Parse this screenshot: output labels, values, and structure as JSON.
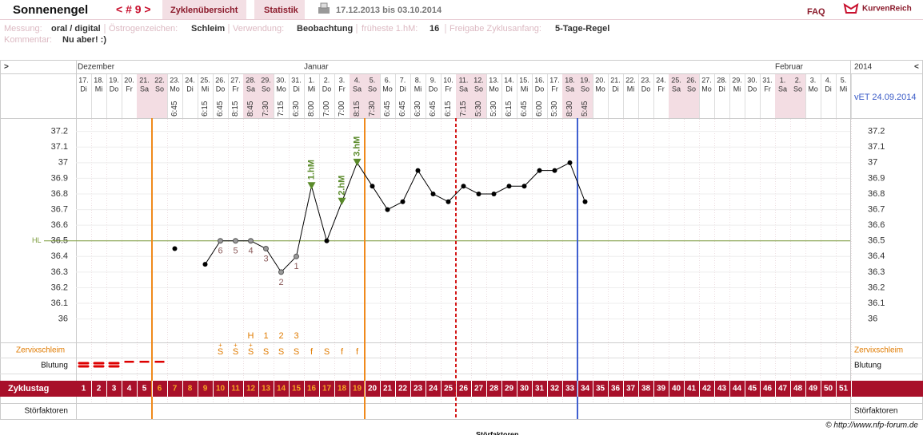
{
  "header": {
    "name": "Sonnenengel",
    "cycle_nav": "< # 9 >",
    "tab_overview": "Zyklenübersicht",
    "tab_stats": "Statistik",
    "range": "17.12.2013 bis 03.10.2014",
    "faq": "FAQ",
    "brand": "KurvenReich"
  },
  "info": {
    "measure_label": "Messung:",
    "measure": "oral / digital",
    "estrogen_label": "Östrogenzeichen:",
    "estrogen": "Schleim",
    "use_label": "Verwendung:",
    "use": "Beobachtung",
    "earliest_label": "früheste 1.hM:",
    "earliest": 16,
    "release_label": "Freigabe Zyklusanfang:",
    "release": "5-Tage-Regel",
    "comment_label": "Kommentar:",
    "comment": "Nu aber! :)"
  },
  "chart_data": {
    "type": "line",
    "nav_left": ">",
    "nav_right": "<",
    "year": "2014",
    "due_date": "vET 24.09.2014",
    "months": [
      "Dezember",
      "Januar",
      "Februar"
    ],
    "categories": [
      "17.",
      "18.",
      "19.",
      "20.",
      "21.",
      "22.",
      "23.",
      "24.",
      "25.",
      "26.",
      "27.",
      "28.",
      "29.",
      "30.",
      "31.",
      "1.",
      "2.",
      "3.",
      "4.",
      "5.",
      "6.",
      "7.",
      "8.",
      "9.",
      "10.",
      "11.",
      "12.",
      "13.",
      "14.",
      "15.",
      "16.",
      "17.",
      "18.",
      "19.",
      "20.",
      "21.",
      "22.",
      "23.",
      "24.",
      "25.",
      "26.",
      "27.",
      "28.",
      "29.",
      "30.",
      "31.",
      "1.",
      "2.",
      "3.",
      "4.",
      "5."
    ],
    "weekdays": [
      "Di",
      "Mi",
      "Do",
      "Fr",
      "Sa",
      "So",
      "Mo",
      "Di",
      "Mi",
      "Do",
      "Fr",
      "Sa",
      "So",
      "Mo",
      "Di",
      "Mi",
      "Do",
      "Fr",
      "Sa",
      "So",
      "Mo",
      "Di",
      "Mi",
      "Do",
      "Fr",
      "Sa",
      "So",
      "Mo",
      "Di",
      "Mi",
      "Do",
      "Fr",
      "Sa",
      "So",
      "Mo",
      "Di",
      "Mi",
      "Do",
      "Fr",
      "Sa",
      "So",
      "Mo",
      "Di",
      "Mi",
      "Do",
      "Fr",
      "Sa",
      "So",
      "Mo",
      "Di",
      "Mi"
    ],
    "times": [
      null,
      null,
      null,
      null,
      null,
      null,
      "6:45",
      null,
      "6:15",
      "6:45",
      "8:15",
      "8:45",
      "7:30",
      "7:15",
      "6:30",
      "8:00",
      "7:00",
      "7:00",
      "8:15",
      "7:30",
      "6:45",
      "6:45",
      "6:30",
      "6:45",
      "6:15",
      "7:15",
      "5:30",
      "5:30",
      "6:15",
      "6:45",
      "6:00",
      "5:30",
      "8:30",
      "5:45",
      null,
      null,
      null,
      null,
      null,
      null,
      null,
      null,
      null,
      null,
      null,
      null,
      null,
      null,
      null,
      null,
      null
    ],
    "values": [
      null,
      null,
      null,
      null,
      null,
      null,
      36.45,
      null,
      36.35,
      36.5,
      36.5,
      36.5,
      36.45,
      36.3,
      36.4,
      36.85,
      36.5,
      36.75,
      37.0,
      36.85,
      36.7,
      36.75,
      36.95,
      36.8,
      36.75,
      36.85,
      36.8,
      36.8,
      36.85,
      36.85,
      36.95,
      36.95,
      37.0,
      36.75,
      null,
      null,
      null,
      null,
      null,
      null,
      null,
      null,
      null,
      null,
      null,
      null,
      null,
      null,
      null,
      null,
      null
    ],
    "color": "#000000",
    "count_labels": [
      null,
      null,
      null,
      null,
      null,
      null,
      null,
      null,
      null,
      "6",
      "5",
      "4",
      "3",
      "2",
      "1",
      null,
      null,
      null,
      null,
      null,
      null,
      null,
      null,
      null,
      null,
      null,
      null,
      null,
      null,
      null,
      null,
      null,
      null,
      null,
      null,
      null,
      null,
      null,
      null,
      null,
      null,
      null,
      null,
      null,
      null,
      null,
      null,
      null,
      null,
      null,
      null
    ],
    "hm_labels": [
      null,
      null,
      null,
      null,
      null,
      null,
      null,
      null,
      null,
      null,
      null,
      null,
      null,
      null,
      null,
      "1.hM",
      null,
      "2.hM",
      "3.hM",
      null,
      null,
      null,
      null,
      null,
      null,
      null,
      null,
      null,
      null,
      null,
      null,
      null,
      null,
      null,
      null,
      null,
      null,
      null,
      null,
      null,
      null,
      null,
      null,
      null,
      null,
      null,
      null,
      null,
      null,
      null,
      null
    ],
    "ylim": [
      35.85,
      37.28
    ],
    "yticks": [
      36,
      36.1,
      36.2,
      36.3,
      36.4,
      36.5,
      36.6,
      36.7,
      36.8,
      36.9,
      37,
      37.1,
      37.2
    ],
    "hl": {
      "value": 36.5,
      "label": "HL"
    },
    "mucus_label": "Zervixschleim",
    "peak": [
      null,
      null,
      null,
      null,
      null,
      null,
      null,
      null,
      null,
      null,
      null,
      "H",
      "1",
      "2",
      "3",
      null,
      null,
      null,
      null,
      null,
      null,
      null,
      null,
      null,
      null,
      null,
      null,
      null,
      null,
      null,
      null,
      null,
      null,
      null,
      null,
      null,
      null,
      null,
      null,
      null,
      null,
      null,
      null,
      null,
      null,
      null,
      null,
      null,
      null,
      null,
      null
    ],
    "mucus_plus": [
      null,
      null,
      null,
      null,
      null,
      null,
      null,
      null,
      null,
      "+",
      "+",
      "+",
      null,
      null,
      null,
      null,
      null,
      null,
      null,
      null,
      null,
      null,
      null,
      null,
      null,
      null,
      null,
      null,
      null,
      null,
      null,
      null,
      null,
      null,
      null,
      null,
      null,
      null,
      null,
      null,
      null,
      null,
      null,
      null,
      null,
      null,
      null,
      null,
      null,
      null,
      null
    ],
    "mucus": [
      null,
      null,
      null,
      null,
      null,
      null,
      null,
      null,
      null,
      "S",
      "S",
      "S",
      "S",
      "S",
      "S",
      "f",
      "S",
      "f",
      "f",
      null,
      null,
      null,
      null,
      null,
      null,
      null,
      null,
      null,
      null,
      null,
      null,
      null,
      null,
      null,
      null,
      null,
      null,
      null,
      null,
      null,
      null,
      null,
      null,
      null,
      null,
      null,
      null,
      null,
      null,
      null,
      null
    ],
    "bleeding_label": "Blutung",
    "cycle_day_label": "Zyklustag",
    "cycle_days": [
      1,
      2,
      3,
      4,
      5,
      6,
      7,
      8,
      9,
      10,
      11,
      12,
      13,
      14,
      15,
      16,
      17,
      18,
      19,
      20,
      21,
      22,
      23,
      24,
      25,
      26,
      27,
      28,
      29,
      30,
      31,
      32,
      33,
      34,
      35,
      36,
      37,
      38,
      39,
      40,
      41,
      42,
      43,
      44,
      45,
      46,
      47,
      48,
      49,
      50,
      51
    ],
    "disturbance_label": "Störfaktoren",
    "copyright": "© http://www.nfp-forum.de"
  }
}
